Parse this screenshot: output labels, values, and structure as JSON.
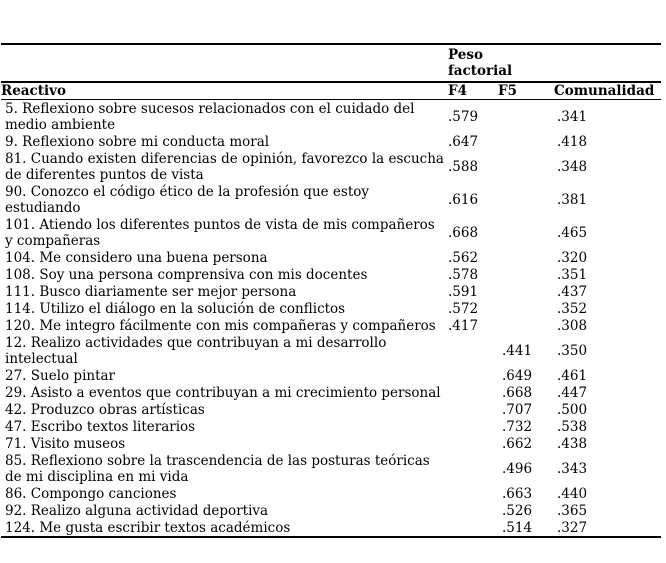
{
  "table": {
    "spanner": "Peso factorial",
    "columns": {
      "reactivo": "Reactivo",
      "f4": "F4",
      "f5": "F5",
      "comunalidad": "Comunalidad"
    },
    "rows": [
      {
        "reactivo": "5. Reflexiono sobre sucesos relacionados con el cuidado del medio ambiente",
        "f4": ".579",
        "f5": "",
        "com": ".341"
      },
      {
        "reactivo": "9. Reflexiono sobre mi conducta moral",
        "f4": ".647",
        "f5": "",
        "com": ".418"
      },
      {
        "reactivo": "81. Cuando existen diferencias de opinión, favorezco la escucha de diferentes puntos de vista",
        "f4": ".588",
        "f5": "",
        "com": ".348"
      },
      {
        "reactivo": "90. Conozco el código ético de la profesión que estoy estudiando",
        "f4": ".616",
        "f5": "",
        "com": ".381"
      },
      {
        "reactivo": "101. Atiendo los diferentes puntos de vista de mis compañeros y compañeras",
        "f4": ".668",
        "f5": "",
        "com": ".465"
      },
      {
        "reactivo": "104. Me considero una buena persona",
        "f4": ".562",
        "f5": "",
        "com": ".320"
      },
      {
        "reactivo": "108. Soy una persona comprensiva con mis docentes",
        "f4": ".578",
        "f5": "",
        "com": ".351"
      },
      {
        "reactivo": "111. Busco diariamente ser mejor persona",
        "f4": ".591",
        "f5": "",
        "com": ".437"
      },
      {
        "reactivo": "114. Utilizo el diálogo en la solución de conflictos",
        "f4": ".572",
        "f5": "",
        "com": ".352"
      },
      {
        "reactivo": "120. Me integro fácilmente con mis compañeras y compañeros",
        "f4": ".417",
        "f5": "",
        "com": ".308"
      },
      {
        "reactivo": "12. Realizo actividades que contribuyan a mi desarrollo intelectual",
        "f4": "",
        "f5": ".441",
        "com": ".350"
      },
      {
        "reactivo": "27. Suelo pintar",
        "f4": "",
        "f5": ".649",
        "com": ".461"
      },
      {
        "reactivo": "29. Asisto a eventos que contribuyan a mi crecimiento personal",
        "f4": "",
        "f5": ".668",
        "com": ".447"
      },
      {
        "reactivo": "42. Produzco obras artísticas",
        "f4": "",
        "f5": ".707",
        "com": ".500"
      },
      {
        "reactivo": "47. Escribo textos literarios",
        "f4": "",
        "f5": ".732",
        "com": ".538"
      },
      {
        "reactivo": "71. Visito museos",
        "f4": "",
        "f5": ".662",
        "com": ".438"
      },
      {
        "reactivo": "85. Reflexiono sobre la trascendencia de las posturas teóricas de mi disciplina en mi vida",
        "f4": "",
        "f5": ".496",
        "com": ".343"
      },
      {
        "reactivo": "86. Compongo canciones",
        "f4": "",
        "f5": ".663",
        "com": ".440"
      },
      {
        "reactivo": "92. Realizo alguna actividad deportiva",
        "f4": "",
        "f5": ".526",
        "com": ".365"
      },
      {
        "reactivo": "124. Me gusta escribir textos académicos",
        "f4": "",
        "f5": ".514",
        "com": ".327"
      }
    ],
    "text_color": "#000000",
    "background_color": "#ffffff"
  }
}
